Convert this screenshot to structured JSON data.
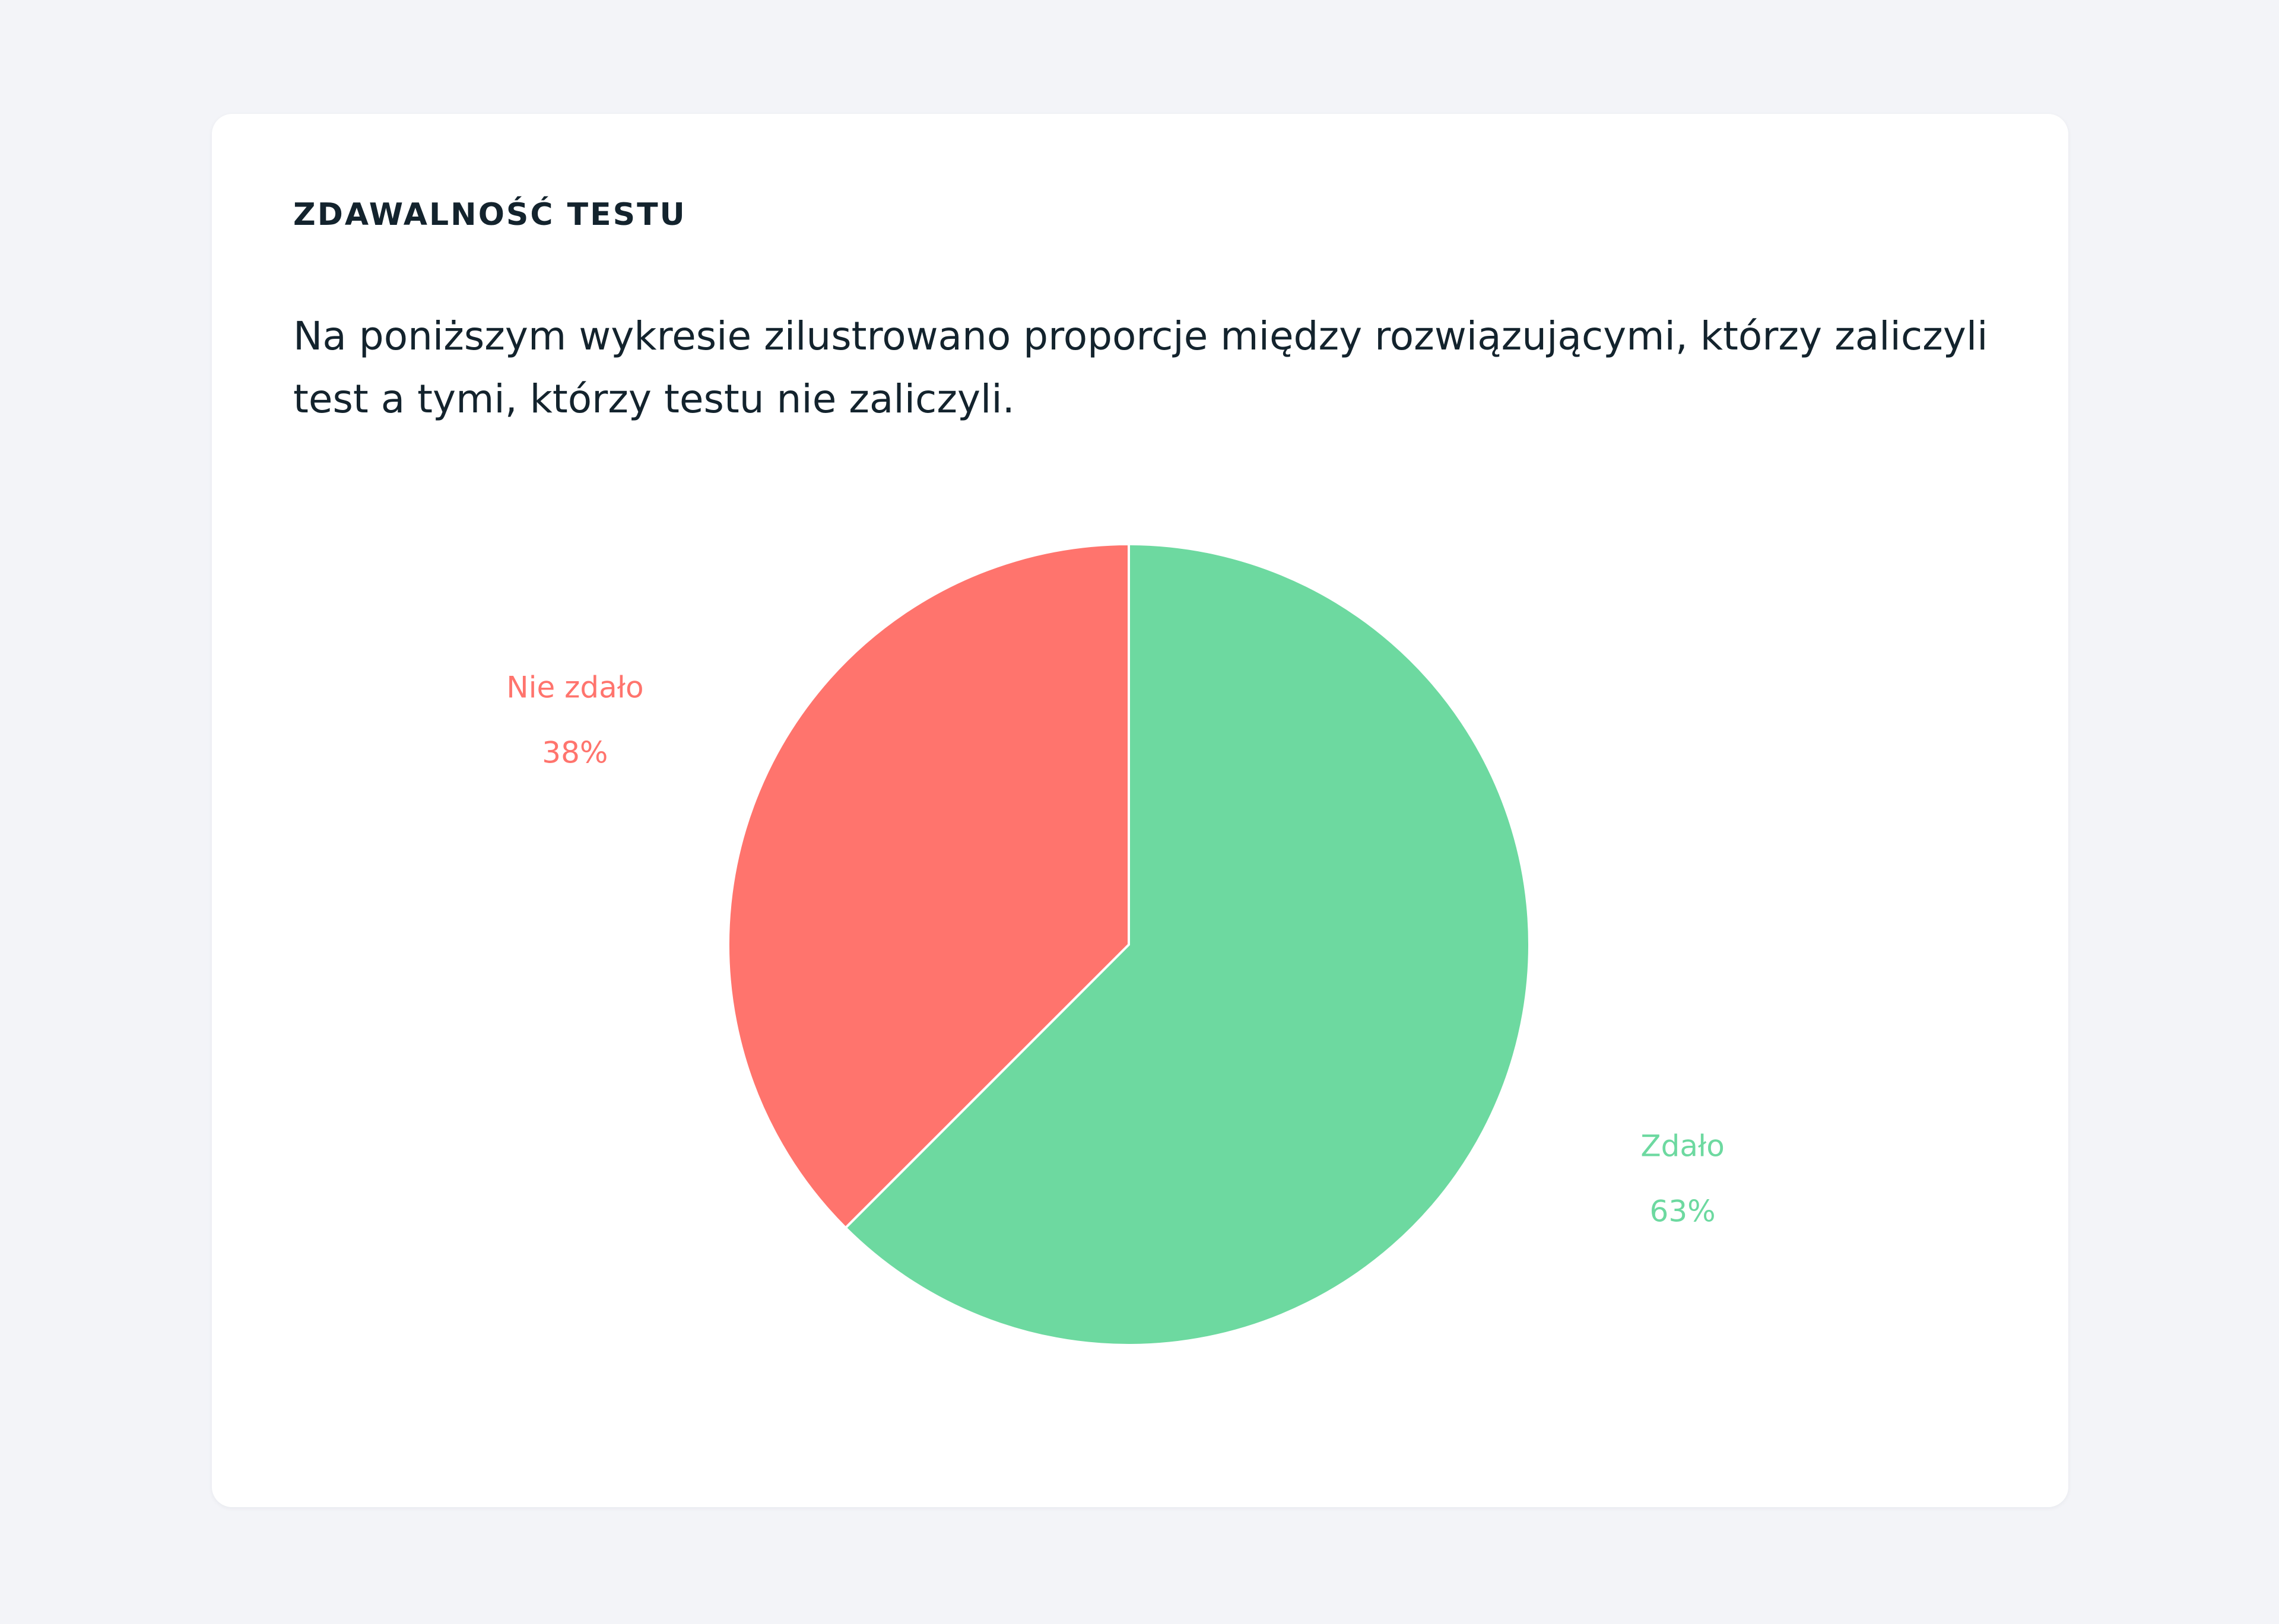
{
  "card": {
    "title": "ZDAWALNOŚĆ TESTU",
    "description": "Na poniższym wykresie zilustrowano proporcje między rozwiązującymi, którzy zaliczyli test a tymi, którzy testu nie zaliczyli."
  },
  "colors": {
    "page_background": "#f3f4f8",
    "card_background": "#ffffff",
    "text": "#13232d",
    "passed": "#6dd9a0",
    "failed": "#ff746d"
  },
  "chart_data": {
    "type": "pie",
    "title": "",
    "slices": [
      {
        "label": "Zdało",
        "percent_label": "63%",
        "value": 62.5,
        "color": "#6dd9a0"
      },
      {
        "label": "Nie zdało",
        "percent_label": "38%",
        "value": 37.5,
        "color": "#ff746d"
      }
    ],
    "start_angle": "12 o'clock",
    "direction": "clockwise",
    "legend": "none"
  }
}
